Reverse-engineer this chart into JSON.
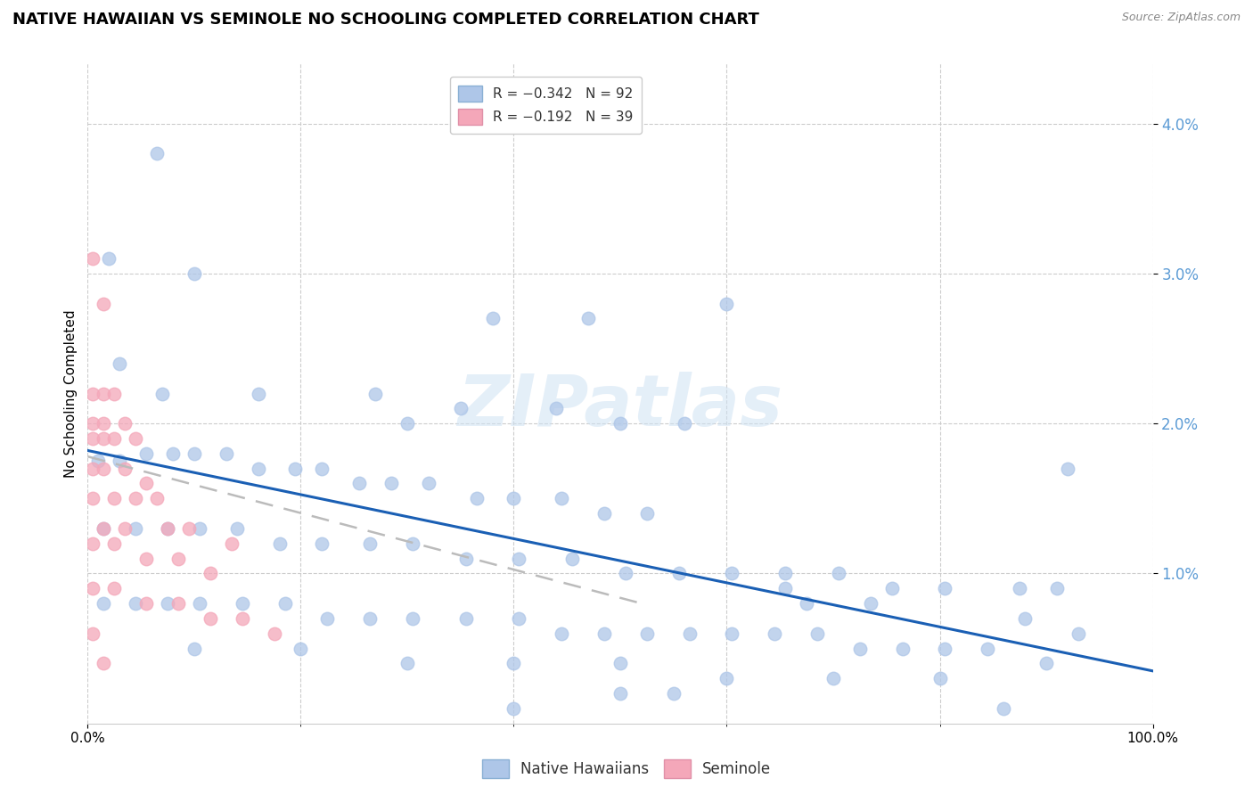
{
  "title": "NATIVE HAWAIIAN VS SEMINOLE NO SCHOOLING COMPLETED CORRELATION CHART",
  "source": "Source: ZipAtlas.com",
  "ylabel": "No Schooling Completed",
  "watermark": "ZIPatlas",
  "legend_r": [
    {
      "label": "R = −0.342   N = 92",
      "color": "#aec6e8"
    },
    {
      "label": "R = −0.192   N = 39",
      "color": "#f4a7b9"
    }
  ],
  "legend_labels": [
    "Native Hawaiians",
    "Seminole"
  ],
  "xlim": [
    0.0,
    1.0
  ],
  "ylim": [
    0.0,
    0.044
  ],
  "yticks": [
    0.01,
    0.02,
    0.03,
    0.04
  ],
  "ytick_labels": [
    "1.0%",
    "2.0%",
    "3.0%",
    "4.0%"
  ],
  "xticks": [
    0.0,
    1.0
  ],
  "xtick_labels": [
    "0.0%",
    "100.0%"
  ],
  "blue_color": "#aec6e8",
  "pink_color": "#f4a7b9",
  "blue_line_color": "#1a5fb4",
  "pink_line_color": "#bbbbbb",
  "blue_scatter": [
    [
      0.065,
      0.038
    ],
    [
      0.02,
      0.031
    ],
    [
      0.1,
      0.03
    ],
    [
      0.38,
      0.027
    ],
    [
      0.47,
      0.027
    ],
    [
      0.6,
      0.028
    ],
    [
      0.03,
      0.024
    ],
    [
      0.07,
      0.022
    ],
    [
      0.16,
      0.022
    ],
    [
      0.27,
      0.022
    ],
    [
      0.35,
      0.021
    ],
    [
      0.44,
      0.021
    ],
    [
      0.3,
      0.02
    ],
    [
      0.5,
      0.02
    ],
    [
      0.56,
      0.02
    ],
    [
      0.01,
      0.0175
    ],
    [
      0.03,
      0.0175
    ],
    [
      0.055,
      0.018
    ],
    [
      0.08,
      0.018
    ],
    [
      0.1,
      0.018
    ],
    [
      0.13,
      0.018
    ],
    [
      0.16,
      0.017
    ],
    [
      0.195,
      0.017
    ],
    [
      0.22,
      0.017
    ],
    [
      0.255,
      0.016
    ],
    [
      0.285,
      0.016
    ],
    [
      0.32,
      0.016
    ],
    [
      0.365,
      0.015
    ],
    [
      0.4,
      0.015
    ],
    [
      0.445,
      0.015
    ],
    [
      0.485,
      0.014
    ],
    [
      0.525,
      0.014
    ],
    [
      0.015,
      0.013
    ],
    [
      0.045,
      0.013
    ],
    [
      0.075,
      0.013
    ],
    [
      0.105,
      0.013
    ],
    [
      0.14,
      0.013
    ],
    [
      0.18,
      0.012
    ],
    [
      0.22,
      0.012
    ],
    [
      0.265,
      0.012
    ],
    [
      0.305,
      0.012
    ],
    [
      0.355,
      0.011
    ],
    [
      0.405,
      0.011
    ],
    [
      0.455,
      0.011
    ],
    [
      0.505,
      0.01
    ],
    [
      0.555,
      0.01
    ],
    [
      0.605,
      0.01
    ],
    [
      0.655,
      0.01
    ],
    [
      0.705,
      0.01
    ],
    [
      0.755,
      0.009
    ],
    [
      0.805,
      0.009
    ],
    [
      0.015,
      0.008
    ],
    [
      0.045,
      0.008
    ],
    [
      0.075,
      0.008
    ],
    [
      0.105,
      0.008
    ],
    [
      0.145,
      0.008
    ],
    [
      0.185,
      0.008
    ],
    [
      0.225,
      0.007
    ],
    [
      0.265,
      0.007
    ],
    [
      0.305,
      0.007
    ],
    [
      0.355,
      0.007
    ],
    [
      0.405,
      0.007
    ],
    [
      0.445,
      0.006
    ],
    [
      0.485,
      0.006
    ],
    [
      0.525,
      0.006
    ],
    [
      0.565,
      0.006
    ],
    [
      0.605,
      0.006
    ],
    [
      0.645,
      0.006
    ],
    [
      0.685,
      0.006
    ],
    [
      0.725,
      0.005
    ],
    [
      0.765,
      0.005
    ],
    [
      0.805,
      0.005
    ],
    [
      0.845,
      0.005
    ],
    [
      0.875,
      0.009
    ],
    [
      0.1,
      0.005
    ],
    [
      0.2,
      0.005
    ],
    [
      0.3,
      0.004
    ],
    [
      0.4,
      0.004
    ],
    [
      0.5,
      0.004
    ],
    [
      0.6,
      0.003
    ],
    [
      0.7,
      0.003
    ],
    [
      0.8,
      0.003
    ],
    [
      0.5,
      0.002
    ],
    [
      0.55,
      0.002
    ],
    [
      0.4,
      0.001
    ],
    [
      0.86,
      0.001
    ],
    [
      0.655,
      0.009
    ],
    [
      0.675,
      0.008
    ],
    [
      0.735,
      0.008
    ],
    [
      0.92,
      0.017
    ],
    [
      0.91,
      0.009
    ],
    [
      0.88,
      0.007
    ],
    [
      0.93,
      0.006
    ],
    [
      0.9,
      0.004
    ]
  ],
  "pink_scatter": [
    [
      0.005,
      0.031
    ],
    [
      0.015,
      0.028
    ],
    [
      0.005,
      0.022
    ],
    [
      0.015,
      0.022
    ],
    [
      0.025,
      0.022
    ],
    [
      0.005,
      0.02
    ],
    [
      0.015,
      0.02
    ],
    [
      0.035,
      0.02
    ],
    [
      0.005,
      0.019
    ],
    [
      0.015,
      0.019
    ],
    [
      0.025,
      0.019
    ],
    [
      0.045,
      0.019
    ],
    [
      0.005,
      0.017
    ],
    [
      0.015,
      0.017
    ],
    [
      0.035,
      0.017
    ],
    [
      0.055,
      0.016
    ],
    [
      0.005,
      0.015
    ],
    [
      0.025,
      0.015
    ],
    [
      0.045,
      0.015
    ],
    [
      0.065,
      0.015
    ],
    [
      0.015,
      0.013
    ],
    [
      0.035,
      0.013
    ],
    [
      0.075,
      0.013
    ],
    [
      0.095,
      0.013
    ],
    [
      0.135,
      0.012
    ],
    [
      0.005,
      0.012
    ],
    [
      0.025,
      0.012
    ],
    [
      0.055,
      0.011
    ],
    [
      0.085,
      0.011
    ],
    [
      0.115,
      0.01
    ],
    [
      0.005,
      0.009
    ],
    [
      0.025,
      0.009
    ],
    [
      0.055,
      0.008
    ],
    [
      0.085,
      0.008
    ],
    [
      0.115,
      0.007
    ],
    [
      0.145,
      0.007
    ],
    [
      0.005,
      0.006
    ],
    [
      0.175,
      0.006
    ],
    [
      0.015,
      0.004
    ]
  ],
  "blue_line_x": [
    0.0,
    1.0
  ],
  "blue_line_y": [
    0.0182,
    0.0035
  ],
  "pink_line_x": [
    0.0,
    0.52
  ],
  "pink_line_y": [
    0.0178,
    0.008
  ]
}
